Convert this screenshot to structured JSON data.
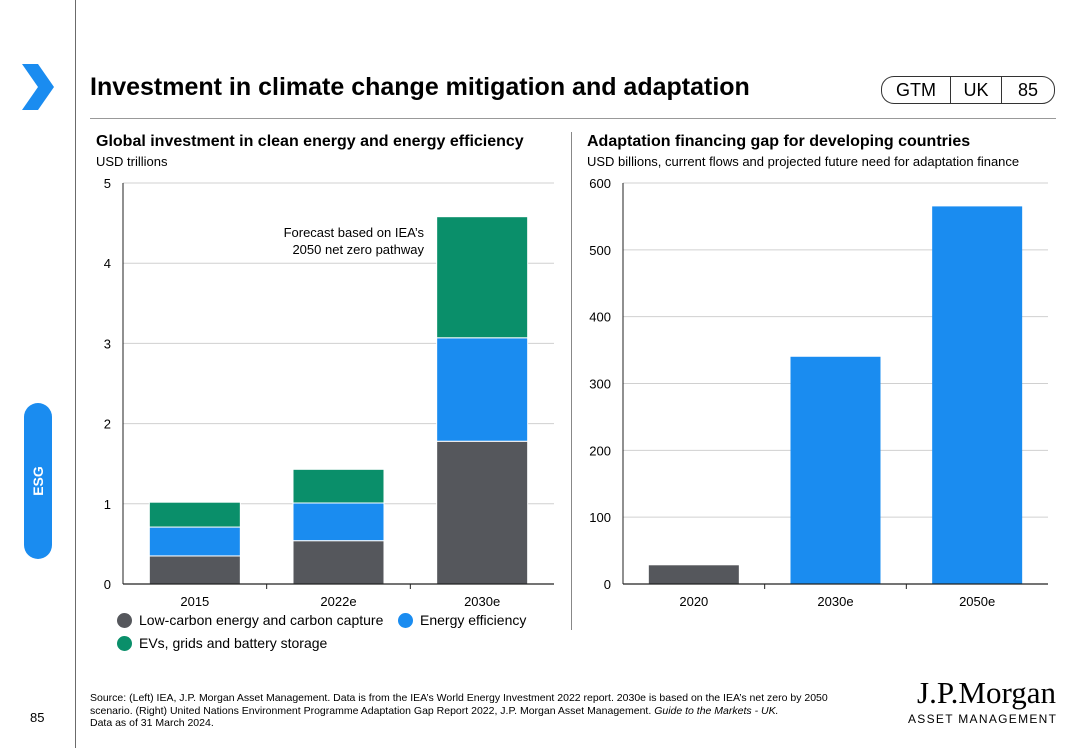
{
  "header": {
    "title": "Investment in climate change mitigation and adaptation",
    "badge": {
      "region1": "GTM",
      "region2": "UK",
      "page": "85"
    }
  },
  "sidebar": {
    "section_label": "ESG",
    "page_number": "85"
  },
  "colors": {
    "low_carbon": "#55575c",
    "energy_efficiency": "#1a8cf0",
    "evs": "#0a8f6a",
    "brand_blue": "#1a8cf0"
  },
  "left_chart": {
    "title": "Global investment in clean energy and energy efficiency",
    "subtitle": "USD trillions",
    "annotation_line1": "Forecast based on IEA’s",
    "annotation_line2": "2050 net zero pathway",
    "legend": {
      "low_carbon": "Low-carbon energy and carbon capture",
      "energy_efficiency": "Energy efficiency",
      "evs": "EVs, grids and battery storage"
    }
  },
  "right_chart": {
    "title": "Adaptation financing gap for developing countries",
    "subtitle": "USD billions, current flows and projected future need for adaptation finance"
  },
  "chart_data": [
    {
      "type": "bar",
      "stacked": true,
      "title": "Global investment in clean energy and energy efficiency",
      "ylabel": "USD trillions",
      "categories": [
        "2015",
        "2022e",
        "2030e"
      ],
      "series": [
        {
          "name": "Low-carbon energy and carbon capture",
          "values": [
            0.35,
            0.54,
            1.78
          ]
        },
        {
          "name": "Energy efficiency",
          "values": [
            0.36,
            0.47,
            1.29
          ]
        },
        {
          "name": "EVs, grids and battery storage",
          "values": [
            0.31,
            0.42,
            1.51
          ]
        }
      ],
      "ylim": [
        0,
        5
      ],
      "yticks": [
        "0",
        "1",
        "2",
        "3",
        "4",
        "5"
      ],
      "grid": true
    },
    {
      "type": "bar",
      "title": "Adaptation financing gap for developing countries",
      "ylabel": "USD billions",
      "categories": [
        "2020",
        "2030e",
        "2050e"
      ],
      "values": [
        28,
        340,
        565
      ],
      "bar_colors": [
        "#55575c",
        "#1a8cf0",
        "#1a8cf0"
      ],
      "ylim": [
        0,
        600
      ],
      "yticks": [
        "0",
        "100",
        "200",
        "300",
        "400",
        "500",
        "600"
      ],
      "grid": true
    }
  ],
  "footer": {
    "source_line1": "Source: (Left) IEA, J.P. Morgan Asset Management. Data is from the IEA’s World Energy Investment 2022 report. 2030e is based on the IEA’s net zero by 2050",
    "source_line2a": "scenario. (Right) United Nations Environment Programme Adaptation Gap Report 2022, J.P. Morgan Asset Management. ",
    "source_line2b": "Guide to the Markets - UK.",
    "source_line3": "Data as of 31 March 2024.",
    "logo_line1": "J.P.Morgan",
    "logo_line2": "ASSET MANAGEMENT"
  }
}
